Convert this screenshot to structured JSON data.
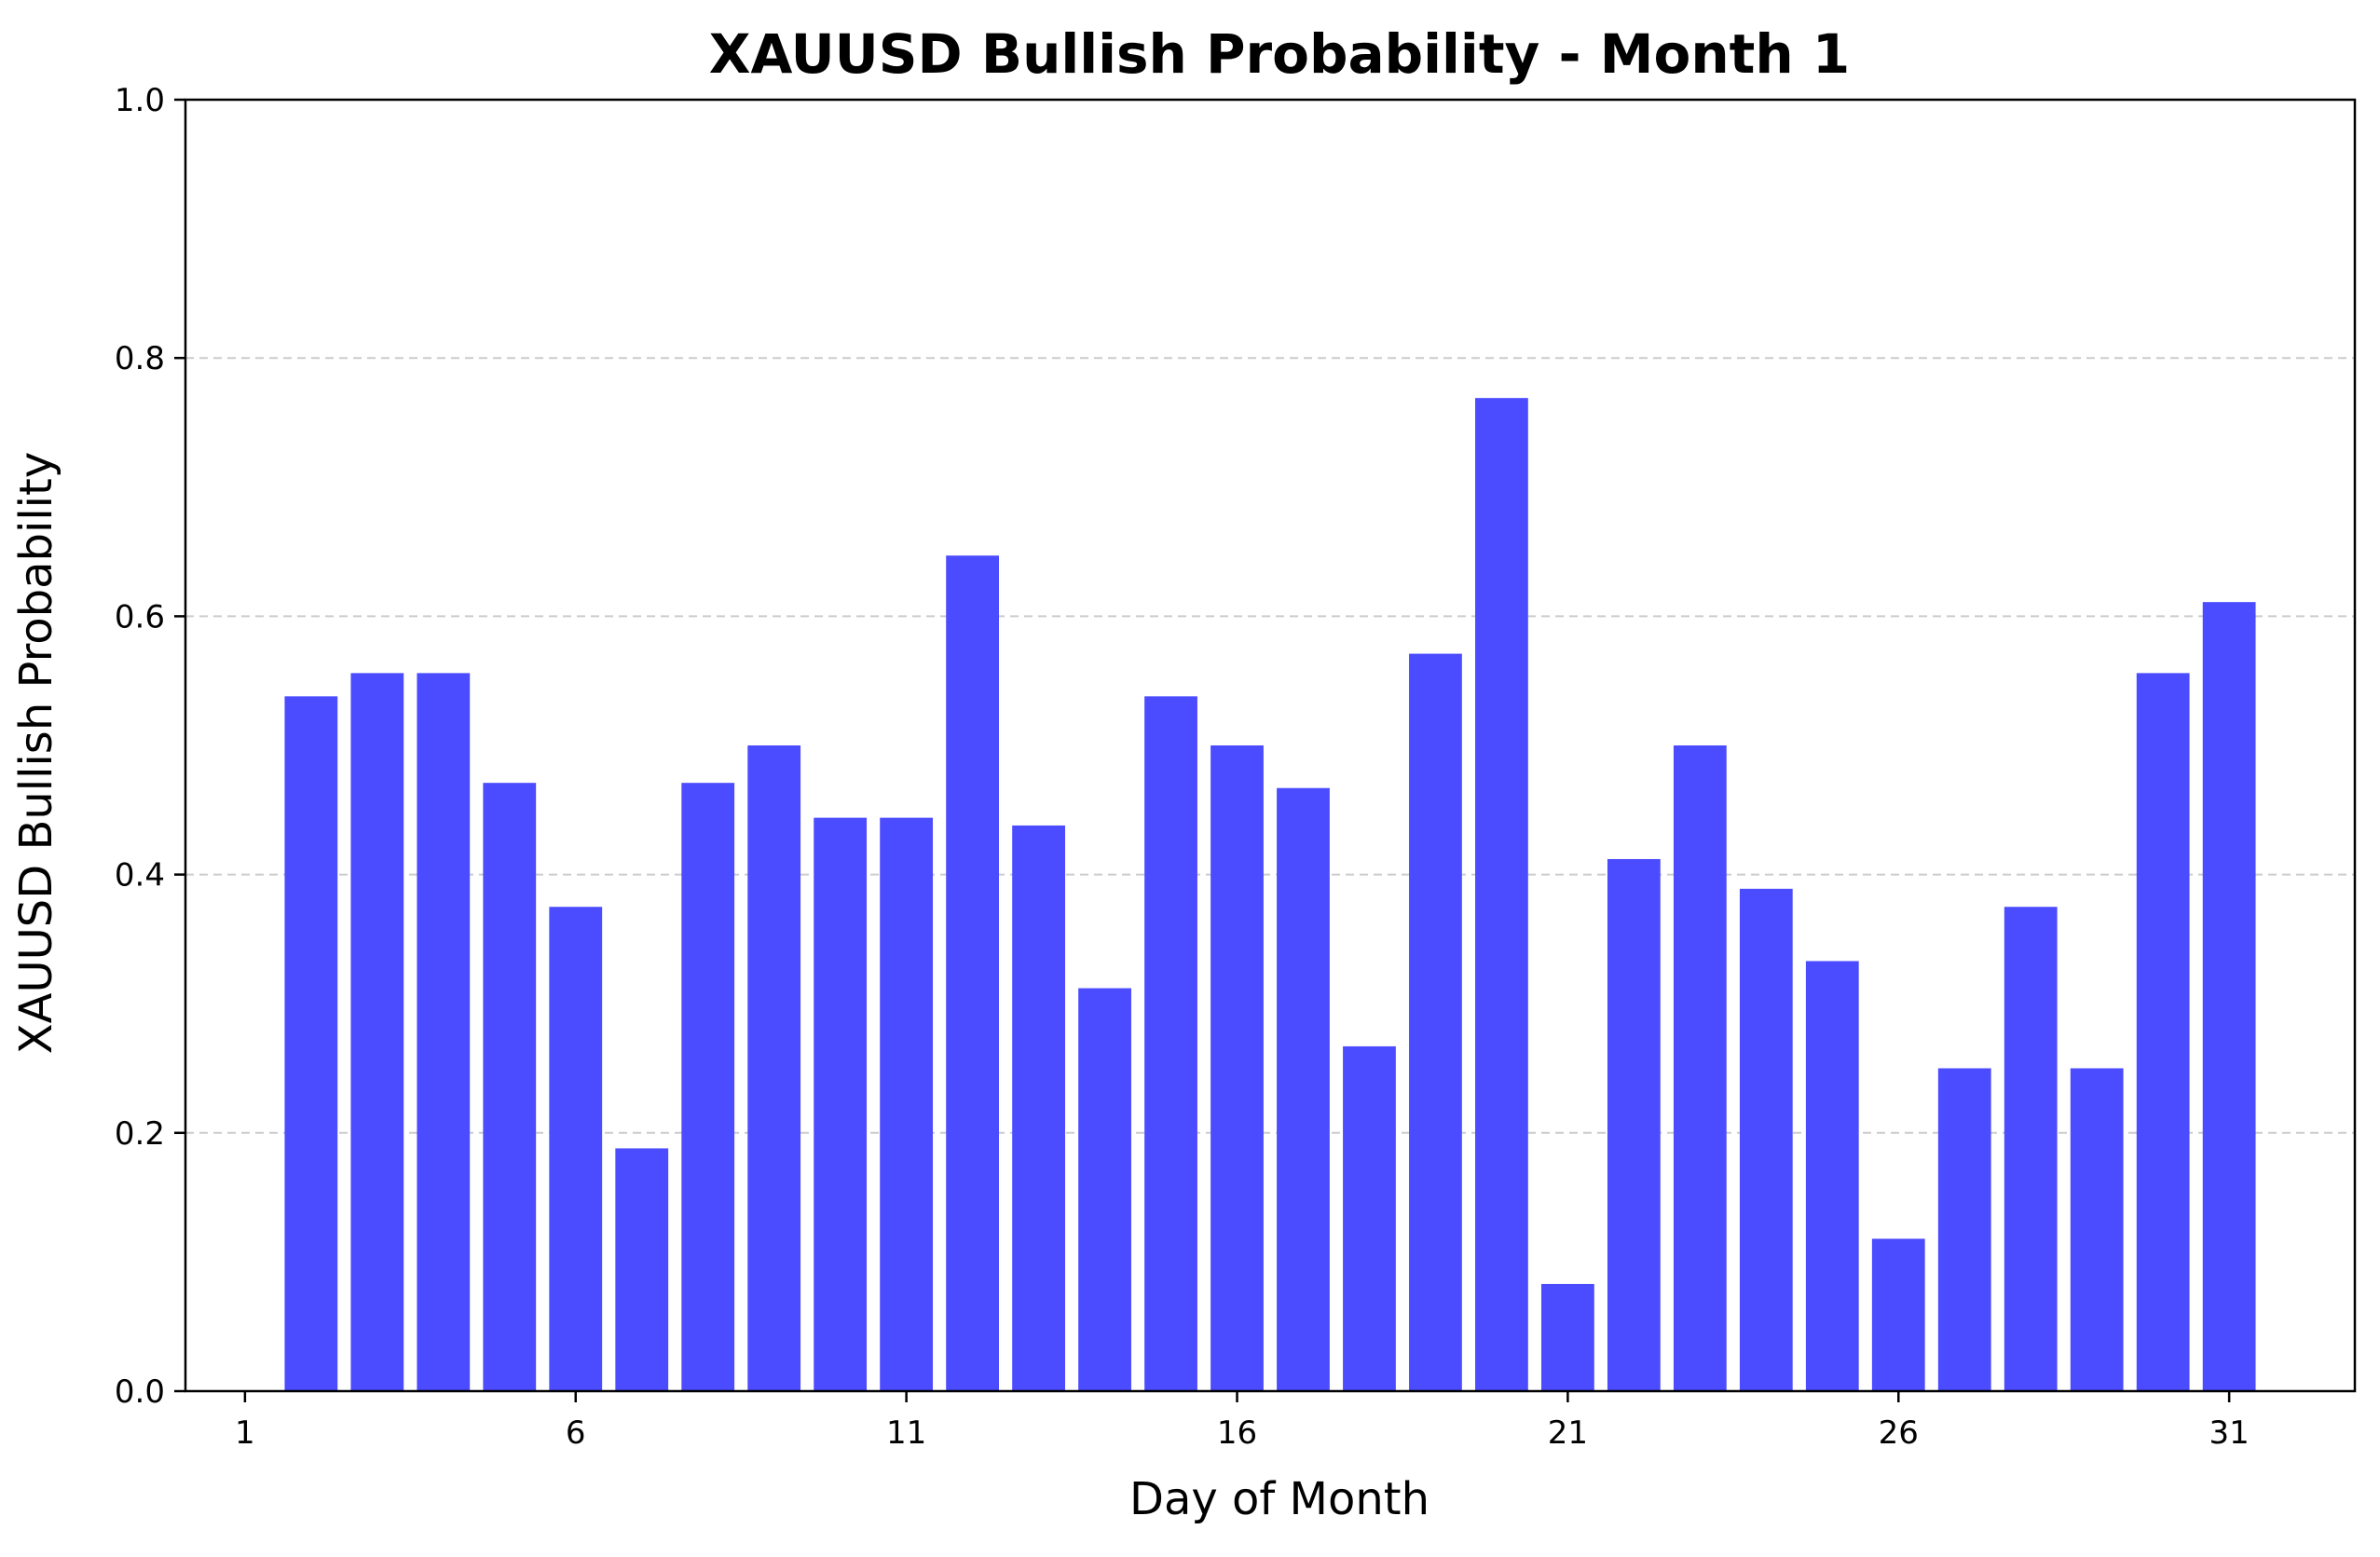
{
  "chart_data": {
    "type": "bar",
    "title": "XAUUSD Bullish Probability - Month 1",
    "xlabel": "Day of Month",
    "ylabel": "XAUUSD Bullish Probability",
    "x": [
      2,
      3,
      4,
      5,
      6,
      7,
      8,
      9,
      10,
      11,
      12,
      13,
      14,
      15,
      16,
      17,
      18,
      19,
      20,
      21,
      22,
      23,
      24,
      25,
      26,
      27,
      28,
      29,
      30,
      31
    ],
    "values": [
      0.538,
      0.556,
      0.556,
      0.471,
      0.375,
      0.188,
      0.471,
      0.5,
      0.444,
      0.444,
      0.647,
      0.438,
      0.312,
      0.538,
      0.5,
      0.467,
      0.267,
      0.571,
      0.769,
      0.083,
      0.412,
      0.5,
      0.389,
      0.333,
      0.118,
      0.25,
      0.375,
      0.25,
      0.556,
      0.611
    ],
    "xlim": [
      0.1,
      32.9
    ],
    "ylim": [
      0,
      1
    ],
    "xticks": [
      "1",
      "6",
      "11",
      "16",
      "21",
      "26",
      "31"
    ],
    "yticks": [
      "0.0",
      "0.2",
      "0.4",
      "0.6",
      "0.8",
      "1.0"
    ],
    "grid": "y-dashed",
    "bar_color": "#4b4bff",
    "grid_color": "#cccccc"
  }
}
